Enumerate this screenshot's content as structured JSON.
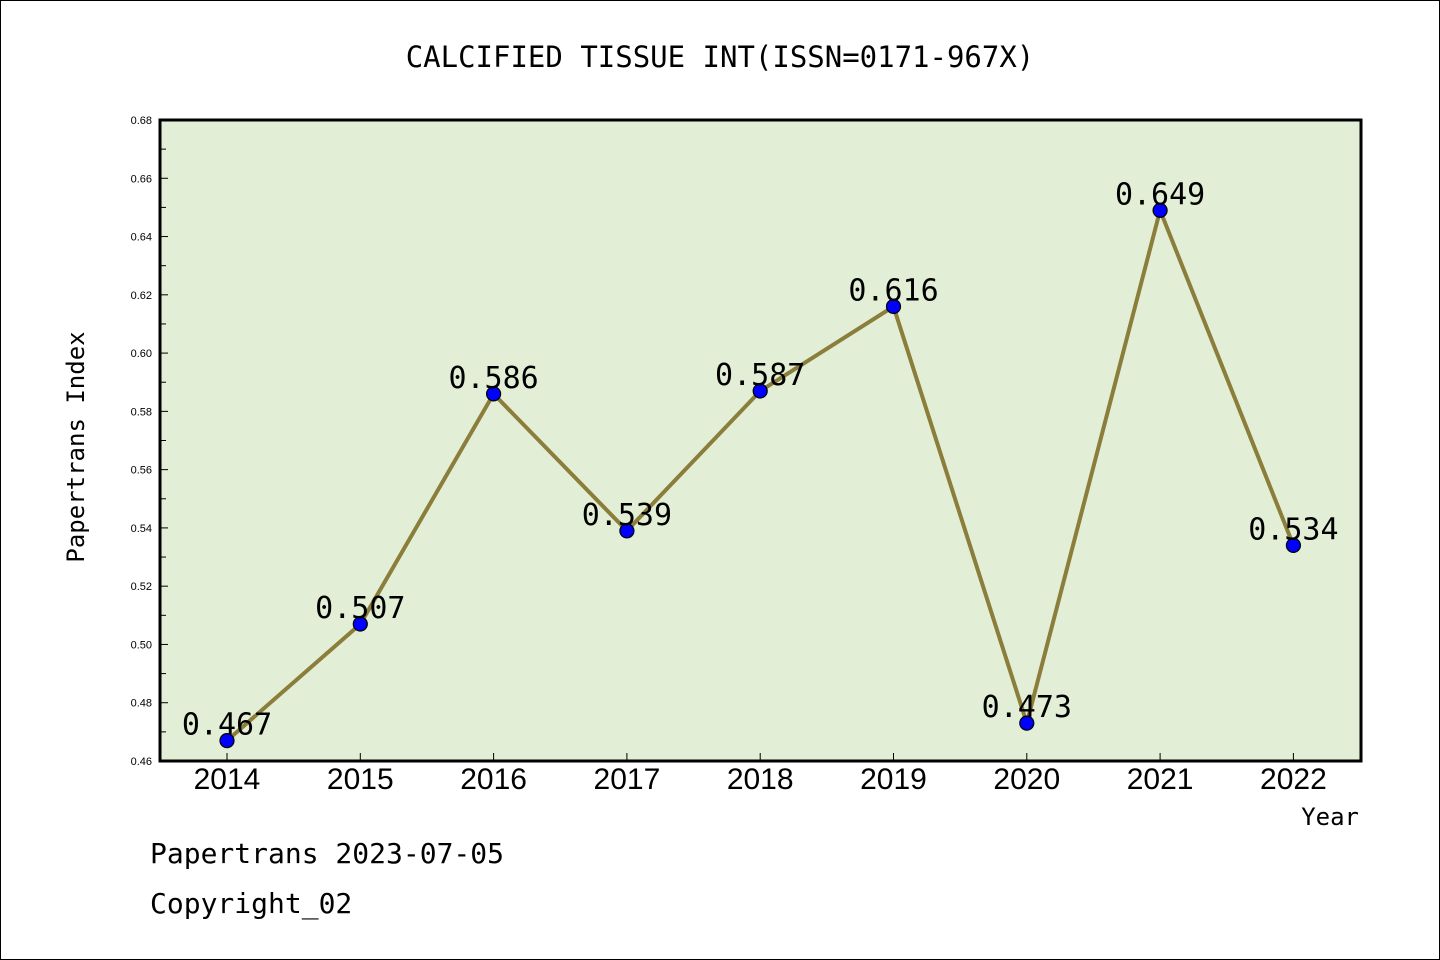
{
  "chart_data": {
    "type": "line",
    "title": "CALCIFIED TISSUE INT(ISSN=0171-967X)",
    "xlabel": "Year",
    "ylabel": "Papertrans Index",
    "categories": [
      "2014",
      "2015",
      "2016",
      "2017",
      "2018",
      "2019",
      "2020",
      "2021",
      "2022"
    ],
    "values": [
      0.467,
      0.507,
      0.586,
      0.539,
      0.587,
      0.616,
      0.473,
      0.649,
      0.534
    ],
    "data_labels": [
      "0.467",
      "0.507",
      "0.586",
      "0.539",
      "0.587",
      "0.616",
      "0.473",
      "0.649",
      "0.534"
    ],
    "ylim": [
      0.46,
      0.68
    ],
    "yticks": [
      "0.46",
      "0.48",
      "0.50",
      "0.52",
      "0.54",
      "0.56",
      "0.58",
      "0.60",
      "0.62",
      "0.64",
      "0.66",
      "0.68"
    ],
    "grid": false,
    "colors": {
      "plot_background": "#e2efd6",
      "line": "#8b7d3a",
      "marker": "#0000ff"
    }
  },
  "footer": {
    "date_text": "Papertrans 2023-07-05",
    "copyright_text": "Copyright_02"
  }
}
